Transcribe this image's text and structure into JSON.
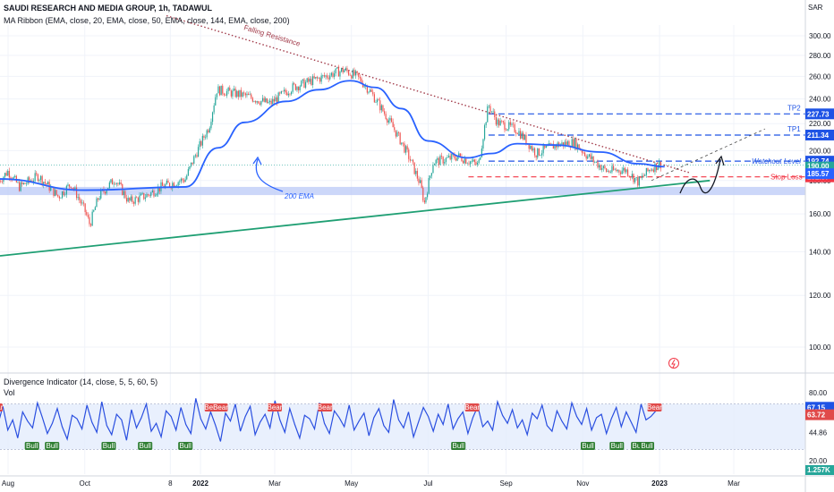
{
  "header": {
    "symbol": "SAUDI RESEARCH AND MEDIA GROUP, 1h, TADAWUL",
    "indicator": "MA Ribbon (EMA, close, 20, EMA, close, 50, EMA, close, 144, EMA, close, 200)",
    "currency": "SAR"
  },
  "colors": {
    "up": "#26a69a",
    "down": "#ef5350",
    "ema": "#2962ff",
    "tp": "#1e53e5",
    "stop": "#f23645",
    "support": "#1f9f73",
    "resistance": "#a23b4a",
    "zone": "#bbcaf7",
    "osc": "#2a4fe0",
    "bull": "#2e7d32",
    "bear": "#e04a4a"
  },
  "chart_data": [
    {
      "type": "candlestick",
      "title": "SAUDI RESEARCH AND MEDIA GROUP, 1h, TADAWUL",
      "y_scale": "log",
      "ylim": [
        94,
        326
      ],
      "y_ticks": [
        100,
        120,
        140,
        160,
        180,
        200,
        220,
        240,
        260,
        280,
        300
      ],
      "x_ticks": [
        "Aug",
        "Oct",
        "8",
        "2022",
        "Mar",
        "May",
        "Jul",
        "Sep",
        "Nov",
        "2023",
        "Mar"
      ],
      "price_path": [
        {
          "t": "2021-07-25",
          "close": 180
        },
        {
          "t": "2021-08-01",
          "close": 186
        },
        {
          "t": "2021-08-10",
          "close": 176
        },
        {
          "t": "2021-08-25",
          "close": 183
        },
        {
          "t": "2021-09-10",
          "close": 170
        },
        {
          "t": "2021-09-20",
          "close": 178
        },
        {
          "t": "2021-10-01",
          "close": 162
        },
        {
          "t": "2021-10-05",
          "close": 154
        },
        {
          "t": "2021-10-12",
          "close": 170
        },
        {
          "t": "2021-10-25",
          "close": 181
        },
        {
          "t": "2021-11-05",
          "close": 167
        },
        {
          "t": "2021-11-20",
          "close": 171
        },
        {
          "t": "2021-12-01",
          "close": 176
        },
        {
          "t": "2021-12-20",
          "close": 181
        },
        {
          "t": "2021-12-28",
          "close": 197
        },
        {
          "t": "2022-01-08",
          "close": 218
        },
        {
          "t": "2022-01-14",
          "close": 248
        },
        {
          "t": "2022-02-05",
          "close": 243
        },
        {
          "t": "2022-02-25",
          "close": 236
        },
        {
          "t": "2022-03-15",
          "close": 250
        },
        {
          "t": "2022-04-05",
          "close": 258
        },
        {
          "t": "2022-04-25",
          "close": 266
        },
        {
          "t": "2022-05-05",
          "close": 260
        },
        {
          "t": "2022-05-15",
          "close": 248
        },
        {
          "t": "2022-05-25",
          "close": 232
        },
        {
          "t": "2022-06-05",
          "close": 214
        },
        {
          "t": "2022-06-15",
          "close": 197
        },
        {
          "t": "2022-06-25",
          "close": 177
        },
        {
          "t": "2022-06-28",
          "close": 166
        },
        {
          "t": "2022-07-05",
          "close": 192
        },
        {
          "t": "2022-07-25",
          "close": 196
        },
        {
          "t": "2022-08-10",
          "close": 190
        },
        {
          "t": "2022-08-18",
          "close": 235
        },
        {
          "t": "2022-08-25",
          "close": 221
        },
        {
          "t": "2022-09-10",
          "close": 215
        },
        {
          "t": "2022-09-25",
          "close": 198
        },
        {
          "t": "2022-10-10",
          "close": 204
        },
        {
          "t": "2022-10-25",
          "close": 206
        },
        {
          "t": "2022-11-05",
          "close": 196
        },
        {
          "t": "2022-11-20",
          "close": 186
        },
        {
          "t": "2022-12-05",
          "close": 187
        },
        {
          "t": "2022-12-15",
          "close": 179
        },
        {
          "t": "2022-12-25",
          "close": 188
        },
        {
          "t": "2023-01-02",
          "close": 191
        }
      ],
      "ema_200": [
        {
          "t": "2021-07-25",
          "v": 181
        },
        {
          "t": "2021-10-01",
          "v": 174
        },
        {
          "t": "2021-12-20",
          "v": 176
        },
        {
          "t": "2022-01-15",
          "v": 202
        },
        {
          "t": "2022-02-05",
          "v": 221
        },
        {
          "t": "2022-03-10",
          "v": 238
        },
        {
          "t": "2022-04-05",
          "v": 248
        },
        {
          "t": "2022-04-30",
          "v": 256
        },
        {
          "t": "2022-05-20",
          "v": 250
        },
        {
          "t": "2022-06-10",
          "v": 232
        },
        {
          "t": "2022-07-01",
          "v": 207
        },
        {
          "t": "2022-08-01",
          "v": 195
        },
        {
          "t": "2022-08-20",
          "v": 198
        },
        {
          "t": "2022-09-10",
          "v": 205
        },
        {
          "t": "2022-10-10",
          "v": 204
        },
        {
          "t": "2022-11-15",
          "v": 199
        },
        {
          "t": "2022-12-15",
          "v": 191
        },
        {
          "t": "2023-01-05",
          "v": 189
        }
      ],
      "levels": [
        {
          "name": "TP2",
          "value": 227.73
        },
        {
          "name": "TP1",
          "value": 211.34
        },
        {
          "name": "Watchout Level",
          "value": 192.74
        },
        {
          "name": "Stop Loss",
          "value": 182.37
        }
      ],
      "price_labels": {
        "current": "190.00",
        "countdown": "28:28",
        "ema_value": "185.57"
      },
      "support_zone": [
        171,
        176
      ],
      "trendlines": [
        {
          "name": "Falling Resistance",
          "from": {
            "t": "2021-12-05",
            "v": 322
          },
          "to": {
            "t": "2023-01-25",
            "v": 185
          }
        },
        {
          "name": "support",
          "from": {
            "t": "2021-07-20",
            "v": 138
          },
          "to": {
            "t": "2023-02-10",
            "v": 180
          }
        }
      ],
      "annotations": [
        "200 EMA",
        "Falling Resistance",
        "TP2",
        "TP1",
        "Watchout Level",
        "Stop Loss"
      ]
    },
    {
      "type": "line",
      "title": "Divergence Indicator (14, close, 5, 5, 60, 5)",
      "subtitle": "Vol",
      "ylim": [
        20,
        80
      ],
      "y_ticks": [
        20,
        44.86,
        63.72,
        80
      ],
      "band": [
        30,
        70
      ],
      "series": [
        {
          "values": [
            62,
            52,
            68,
            47,
            56,
            40,
            63,
            55,
            49,
            71,
            58,
            44,
            53,
            66,
            50,
            39,
            60,
            57,
            48,
            69,
            54,
            45,
            72,
            51,
            43,
            61,
            56,
            38,
            65,
            49,
            58,
            70,
            46,
            53,
            41,
            64,
            59,
            47,
            67,
            52,
            44,
            75,
            57,
            48,
            63,
            51,
            37,
            62,
            55,
            70,
            46,
            59,
            68,
            43,
            54,
            61,
            49,
            73,
            56,
            45,
            66,
            52,
            40,
            60,
            57,
            48,
            71,
            53,
            44,
            64,
            58,
            50,
            69,
            47,
            55,
            62,
            42,
            58,
            66,
            51,
            45,
            74,
            56,
            49,
            63,
            41,
            54,
            67,
            59,
            46,
            61,
            52,
            70,
            48,
            57,
            63,
            44,
            58,
            68,
            50,
            55,
            47,
            72,
            60,
            53,
            65,
            49,
            56,
            43,
            62,
            57,
            69,
            51,
            46,
            64,
            55,
            48,
            71,
            59,
            52,
            66,
            47,
            58,
            61,
            44,
            57,
            67,
            50,
            63,
            54,
            45,
            70,
            56,
            59,
            64,
            67
          ]
        }
      ],
      "signals": {
        "bear": [
          "2021-07-22",
          "2022-01-10",
          "2022-01-17",
          "2022-03-01",
          "2022-04-10",
          "2022-08-05",
          "2022-12-28"
        ],
        "bull": [
          "2021-08-20",
          "2021-09-05",
          "2021-10-20",
          "2021-11-18",
          "2021-12-20",
          "2022-07-25",
          "2022-11-05",
          "2022-11-28",
          "2022-12-15",
          "2022-12-22"
        ]
      },
      "value_labels": [
        "67.15",
        "63.72",
        "1.257K"
      ]
    }
  ]
}
